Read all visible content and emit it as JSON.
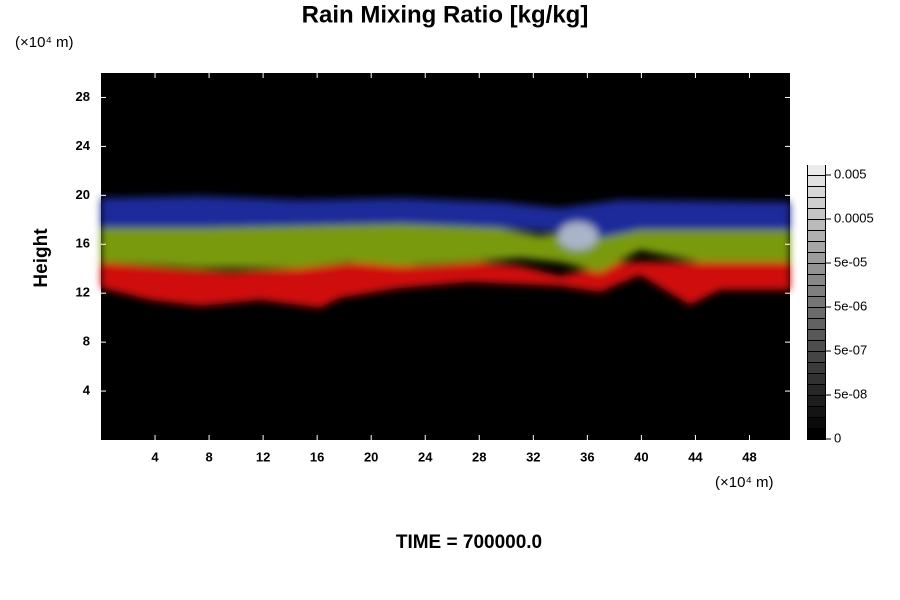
{
  "chart_data": {
    "type": "heatmap",
    "title": "Rain Mixing Ratio [kg/kg]",
    "y_label": "Height",
    "x_unit": "(×10⁴ m)",
    "y_unit": "(×10⁴ m)",
    "annotation": "TIME = 700000.0",
    "xlim": [
      0,
      51
    ],
    "xticks": [
      4,
      8,
      12,
      16,
      20,
      24,
      28,
      32,
      36,
      40,
      44,
      48
    ],
    "ylim": [
      0,
      30
    ],
    "yticks": [
      4,
      8,
      12,
      16,
      20,
      24,
      28
    ],
    "colorbar_ticks": [
      0,
      {
        "value": 5e-08,
        "label": "5e-08"
      },
      {
        "value": 5e-07,
        "label": "5e-07"
      },
      {
        "value": 5e-06,
        "label": "5e-06"
      },
      {
        "value": 5e-05,
        "label": "5e-05"
      },
      0.0005,
      0.005
    ]
  }
}
